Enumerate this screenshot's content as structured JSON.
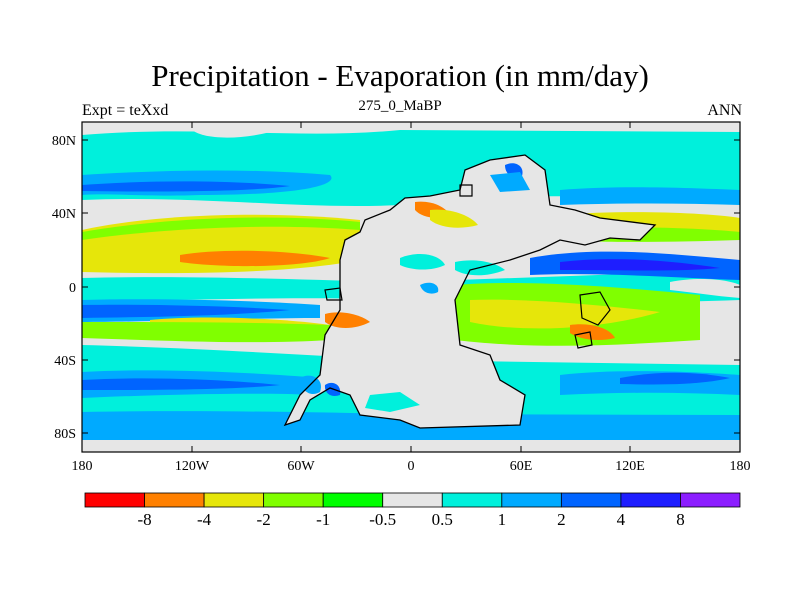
{
  "title": "Precipitation - Evaporation (in mm/day)",
  "left_string": "Expt = teXxd",
  "center_string": "275_0_MaBP",
  "right_string": "ANN",
  "map_data": {
    "projection": "cylindrical equidistant",
    "lon_range": [
      -180,
      180
    ],
    "lat_range": [
      -90,
      90
    ],
    "lon_ticks": [
      "180",
      "120W",
      "60W",
      "0",
      "60E",
      "120E",
      "180"
    ],
    "lat_ticks": [
      "80N",
      "40N",
      "0",
      "40S",
      "80S"
    ],
    "field": "P - E (mm/day)",
    "continent": "Pangaea (outlined in black)"
  },
  "colorbar": {
    "colors": [
      "#ff0000",
      "#ff8000",
      "#e6e60a",
      "#80ff00",
      "#00ff00",
      "#e6e6e6",
      "#00f0dc",
      "#00aaff",
      "#0064ff",
      "#1e1eff",
      "#8c1eff"
    ],
    "labels": [
      "-8",
      "-4",
      "-2",
      "-1",
      "-0.5",
      "0.5",
      "1",
      "2",
      "4",
      "8"
    ]
  }
}
